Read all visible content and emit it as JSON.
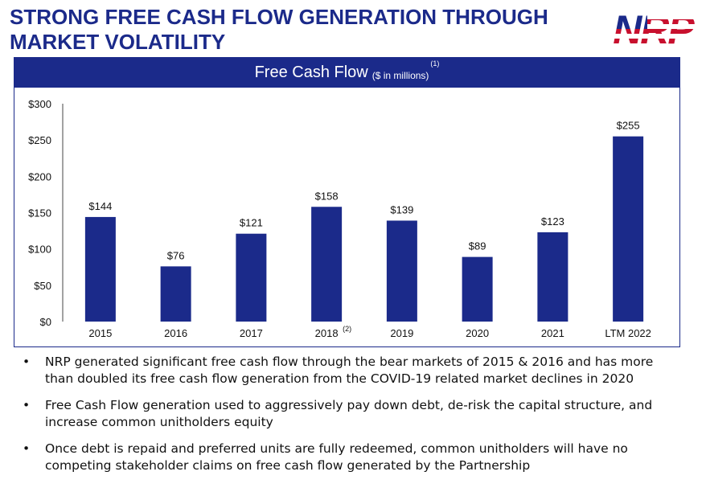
{
  "header": {
    "title_line1": "STRONG FREE CASH FLOW GENERATION THROUGH",
    "title_line2": "MARKET VOLATILITY"
  },
  "logo": {
    "text": "NRP"
  },
  "panel": {
    "title": "Free Cash Flow",
    "units": "($ in millions)",
    "footnote": "(1)"
  },
  "chart_data": {
    "type": "bar",
    "categories": [
      "2015",
      "2016",
      "2017",
      "2018",
      "2019",
      "2020",
      "2021",
      "LTM 2022"
    ],
    "category_footnotes": [
      "",
      "",
      "",
      "(2)",
      "",
      "",
      "",
      ""
    ],
    "values": [
      144,
      76,
      121,
      158,
      139,
      89,
      123,
      255
    ],
    "data_labels": [
      "$144",
      "$76",
      "$121",
      "$158",
      "$139",
      "$89",
      "$123",
      "$255"
    ],
    "y_ticks": [
      0,
      50,
      100,
      150,
      200,
      250,
      300
    ],
    "y_tick_labels": [
      "$0",
      "$50",
      "$100",
      "$150",
      "$200",
      "$250",
      "$300"
    ],
    "ylim": [
      0,
      300
    ],
    "bar_color": "#1b2a8a",
    "grid": false,
    "title": "Free Cash Flow ($ in millions)",
    "xlabel": "",
    "ylabel": ""
  },
  "bullets": [
    "NRP generated significant free cash flow through the bear markets of 2015 & 2016 and has more than doubled its free cash flow generation from the COVID-19 related market declines in 2020",
    "Free Cash Flow generation used to aggressively pay down debt, de-risk the capital structure, and increase common unitholders equity",
    "Once debt is repaid and preferred units are fully redeemed, common unitholders will have no competing stakeholder claims on free cash flow generated by the Partnership"
  ],
  "bullet_symbol": "•",
  "colors": {
    "brand": "#1b2a8a",
    "logo_red": "#c8102e"
  }
}
